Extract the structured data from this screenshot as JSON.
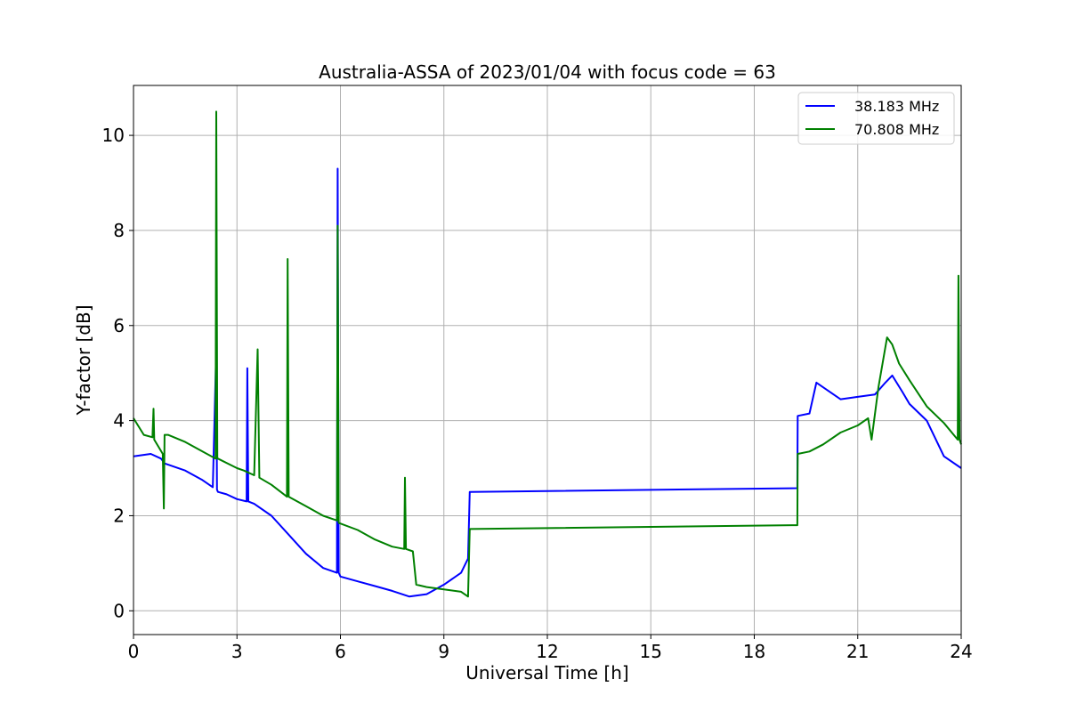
{
  "chart_data": {
    "type": "line",
    "title": "Australia-ASSA of 2023/01/04 with focus code = 63",
    "xlabel": "Universal Time [h]",
    "ylabel": "Y-factor [dB]",
    "xlim": [
      0,
      24
    ],
    "ylim": [
      -0.5,
      11.05
    ],
    "xticks": [
      0,
      3,
      6,
      9,
      12,
      15,
      18,
      21,
      24
    ],
    "xtick_labels": [
      "0",
      "3",
      "6",
      "9",
      "12",
      "15",
      "18",
      "21",
      "24"
    ],
    "yticks": [
      0,
      2,
      4,
      6,
      8,
      10
    ],
    "ytick_labels": [
      "0",
      "2",
      "4",
      "6",
      "8",
      "10"
    ],
    "grid": true,
    "legend_position": "upper right",
    "series": [
      {
        "name": "38.183 MHz",
        "color": "#0000ff",
        "x": [
          0,
          0.5,
          0.8,
          0.9,
          1.5,
          2.0,
          2.3,
          2.4,
          2.42,
          2.45,
          2.7,
          3.0,
          3.28,
          3.3,
          3.33,
          3.5,
          4.0,
          4.5,
          5.0,
          5.5,
          5.9,
          5.92,
          5.95,
          6.0,
          6.5,
          7.0,
          7.5,
          8.0,
          8.5,
          9.0,
          9.5,
          9.7,
          9.75,
          9.76,
          19.25,
          19.26,
          19.6,
          19.8,
          20.5,
          21.0,
          21.5,
          21.8,
          22.0,
          22.3,
          22.5,
          23.0,
          23.2,
          23.5,
          24.0
        ],
        "y": [
          3.25,
          3.3,
          3.2,
          3.1,
          2.95,
          2.75,
          2.6,
          5.5,
          2.55,
          2.5,
          2.45,
          2.35,
          2.3,
          5.1,
          2.3,
          2.25,
          2.0,
          1.6,
          1.2,
          0.9,
          0.8,
          9.3,
          0.8,
          0.72,
          0.62,
          0.52,
          0.42,
          0.3,
          0.35,
          0.55,
          0.8,
          1.1,
          2.5,
          2.5,
          2.58,
          4.1,
          4.15,
          4.8,
          4.45,
          4.5,
          4.55,
          4.8,
          4.95,
          4.6,
          4.35,
          4.0,
          3.7,
          3.25,
          3.0
        ]
      },
      {
        "name": "70.808 MHz",
        "color": "#008000",
        "x": [
          0,
          0.3,
          0.55,
          0.58,
          0.6,
          0.85,
          0.88,
          0.9,
          1.0,
          1.5,
          2.0,
          2.38,
          2.4,
          2.43,
          2.45,
          3.0,
          3.2,
          3.5,
          3.6,
          3.65,
          4.0,
          4.45,
          4.47,
          4.5,
          5.0,
          5.5,
          5.9,
          5.92,
          5.95,
          6.5,
          7.0,
          7.5,
          7.85,
          7.87,
          7.9,
          8.1,
          8.2,
          8.5,
          9.0,
          9.5,
          9.7,
          9.75,
          9.76,
          19.25,
          19.26,
          19.6,
          20.0,
          20.5,
          21.0,
          21.3,
          21.4,
          21.6,
          21.85,
          22.0,
          22.2,
          22.5,
          23.0,
          23.5,
          23.9,
          23.92,
          23.95,
          24.0
        ],
        "y": [
          4.05,
          3.7,
          3.65,
          4.25,
          3.6,
          3.3,
          2.15,
          3.7,
          3.7,
          3.55,
          3.35,
          3.2,
          10.5,
          3.2,
          3.2,
          3.0,
          2.95,
          2.85,
          5.5,
          2.8,
          2.65,
          2.4,
          7.4,
          2.4,
          2.2,
          2.0,
          1.9,
          8.1,
          1.85,
          1.7,
          1.5,
          1.35,
          1.3,
          2.8,
          1.3,
          1.25,
          0.55,
          0.5,
          0.45,
          0.4,
          0.3,
          1.72,
          1.72,
          1.8,
          3.3,
          3.35,
          3.5,
          3.75,
          3.9,
          4.05,
          3.6,
          4.7,
          5.75,
          5.6,
          5.2,
          4.85,
          4.3,
          3.95,
          3.6,
          7.05,
          3.6,
          3.5
        ]
      }
    ]
  }
}
